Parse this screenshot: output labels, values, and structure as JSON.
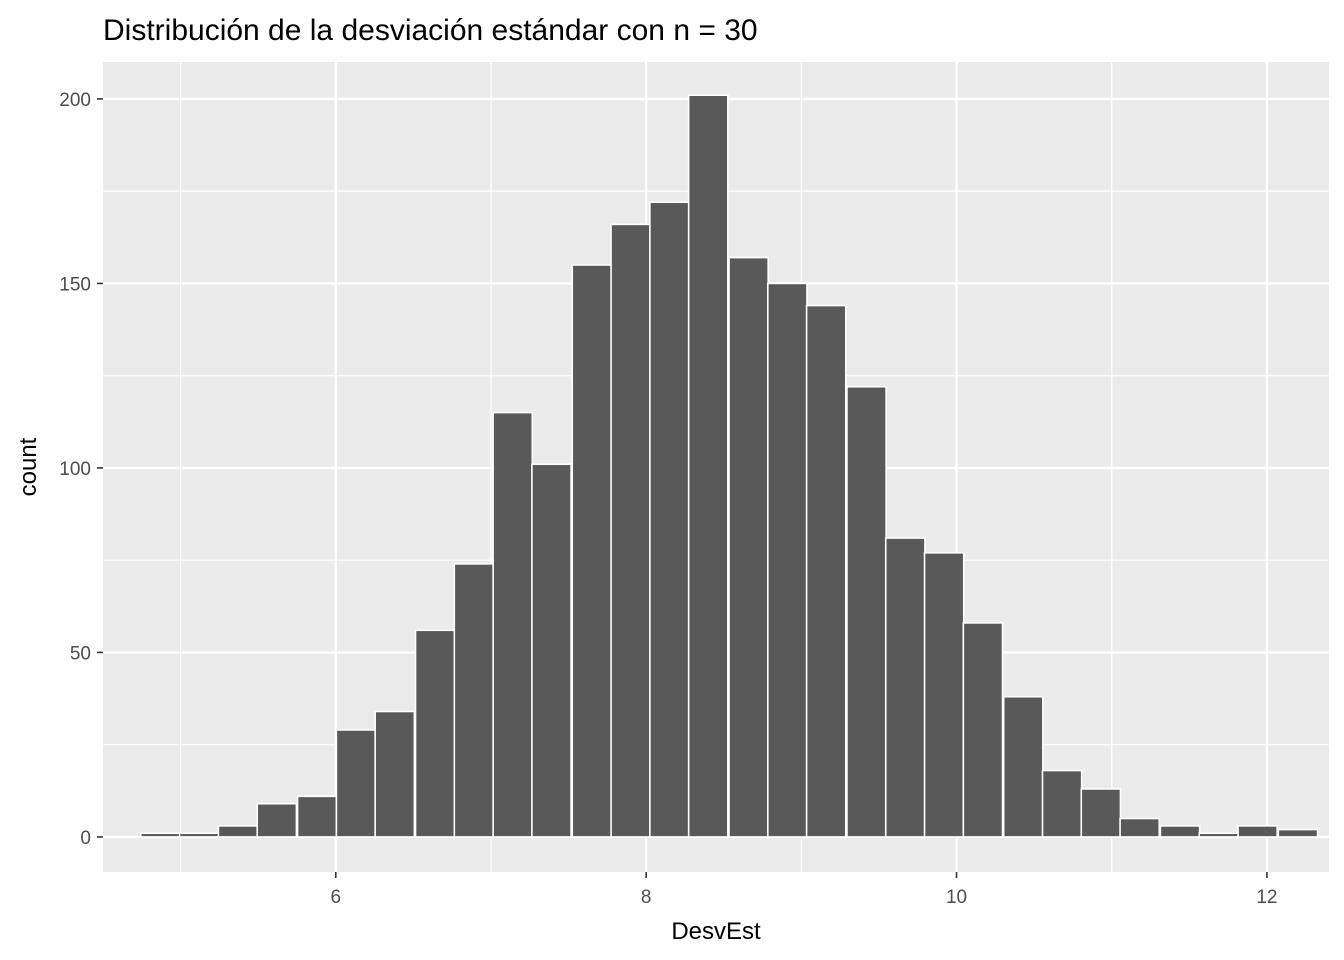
{
  "chart_data": {
    "type": "bar",
    "title": "Distribución de la desviación estándar con n = 30",
    "xlabel": "DesvEst",
    "ylabel": "count",
    "xlim": [
      4.5,
      12.4
    ],
    "ylim": [
      -9.5,
      210
    ],
    "x_ticks": [
      6,
      8,
      10,
      12
    ],
    "x_tick_labels": [
      "6",
      "8",
      "10",
      "12"
    ],
    "y_ticks": [
      0,
      50,
      100,
      150,
      200
    ],
    "y_tick_labels": [
      "0",
      "50",
      "100",
      "150",
      "200"
    ],
    "grid": true,
    "bin_width": 0.2525,
    "bins": [
      {
        "x": 4.87,
        "count": 1
      },
      {
        "x": 5.12,
        "count": 1
      },
      {
        "x": 5.37,
        "count": 3
      },
      {
        "x": 5.62,
        "count": 9
      },
      {
        "x": 5.88,
        "count": 11
      },
      {
        "x": 6.13,
        "count": 29
      },
      {
        "x": 6.38,
        "count": 34
      },
      {
        "x": 6.64,
        "count": 56
      },
      {
        "x": 6.89,
        "count": 74
      },
      {
        "x": 7.14,
        "count": 115
      },
      {
        "x": 7.39,
        "count": 101
      },
      {
        "x": 7.65,
        "count": 155
      },
      {
        "x": 7.9,
        "count": 166
      },
      {
        "x": 8.15,
        "count": 172
      },
      {
        "x": 8.4,
        "count": 201
      },
      {
        "x": 8.66,
        "count": 157
      },
      {
        "x": 8.91,
        "count": 150
      },
      {
        "x": 9.16,
        "count": 144
      },
      {
        "x": 9.42,
        "count": 122
      },
      {
        "x": 9.67,
        "count": 81
      },
      {
        "x": 9.92,
        "count": 77
      },
      {
        "x": 10.17,
        "count": 58
      },
      {
        "x": 10.43,
        "count": 38
      },
      {
        "x": 10.68,
        "count": 18
      },
      {
        "x": 10.93,
        "count": 13
      },
      {
        "x": 11.18,
        "count": 5
      },
      {
        "x": 11.44,
        "count": 3
      },
      {
        "x": 11.69,
        "count": 1
      },
      {
        "x": 11.94,
        "count": 3
      },
      {
        "x": 12.2,
        "count": 2
      }
    ],
    "colors": {
      "panel": "#ebebeb",
      "grid_major": "#ffffff",
      "bar_fill": "#595959",
      "bar_outline": "#ffffff",
      "tick": "#333333"
    }
  }
}
